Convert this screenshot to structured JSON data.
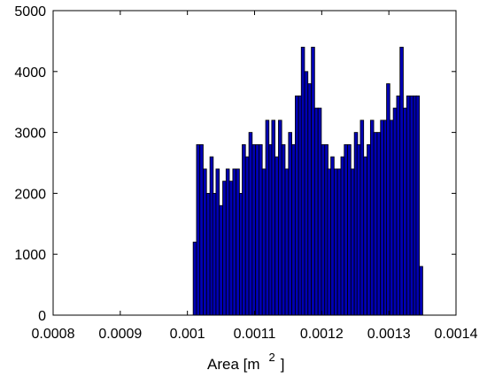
{
  "chart_data": {
    "type": "bar",
    "title": "",
    "xlabel": "Area [m",
    "xlabel_superscript": "2",
    "xlabel_close": "]",
    "ylabel": "",
    "xlim": [
      0.0008,
      0.0014
    ],
    "ylim": [
      0,
      5000
    ],
    "xticks": [
      "0.0008",
      "0.0009",
      "0.001",
      "0.0011",
      "0.0012",
      "0.0013",
      "0.0014"
    ],
    "yticks": [
      "0",
      "1000",
      "2000",
      "3000",
      "4000",
      "5000"
    ],
    "bar_color": "#0000b4",
    "edge_color": "#000000",
    "grid": false,
    "bin_width": 4.9e-06,
    "x": [
      0.001011,
      0.001016,
      0.001021,
      0.001026,
      0.001031,
      0.001036,
      0.00104,
      0.001045,
      0.00105,
      0.001055,
      0.00106,
      0.001065,
      0.00107,
      0.001075,
      0.00108,
      0.001084,
      0.001089,
      0.001094,
      0.001099,
      0.001104,
      0.001109,
      0.001114,
      0.001119,
      0.001124,
      0.001128,
      0.001133,
      0.001138,
      0.001143,
      0.001148,
      0.001153,
      0.001158,
      0.001163,
      0.001168,
      0.001172,
      0.001177,
      0.001182,
      0.001187,
      0.001192,
      0.001197,
      0.001202,
      0.001207,
      0.001211,
      0.001216,
      0.001221,
      0.001226,
      0.001231,
      0.001236,
      0.001241,
      0.001246,
      0.001251,
      0.001255,
      0.00126,
      0.001265,
      0.00127,
      0.001275,
      0.00128,
      0.001285,
      0.00129,
      0.001295,
      0.001299,
      0.001304,
      0.001309,
      0.001314,
      0.001319,
      0.001324,
      0.001329,
      0.001334,
      0.001339,
      0.001343,
      0.001348
    ],
    "values": [
      1200,
      2800,
      2800,
      2400,
      2000,
      2600,
      2000,
      2400,
      1800,
      2200,
      2400,
      2200,
      2400,
      2400,
      2000,
      2800,
      2600,
      3000,
      2800,
      2800,
      2800,
      2400,
      3200,
      2800,
      3200,
      2600,
      3200,
      2800,
      2400,
      3000,
      2800,
      3600,
      3600,
      4400,
      4000,
      3800,
      4400,
      3400,
      3400,
      2800,
      2800,
      2400,
      2600,
      2400,
      2400,
      2600,
      2800,
      2800,
      2400,
      3000,
      2800,
      3200,
      2600,
      2800,
      3200,
      3000,
      3000,
      3200,
      3200,
      3800,
      3200,
      3400,
      3600,
      4400,
      3400,
      3600,
      3600,
      3600,
      3600,
      800
    ]
  }
}
